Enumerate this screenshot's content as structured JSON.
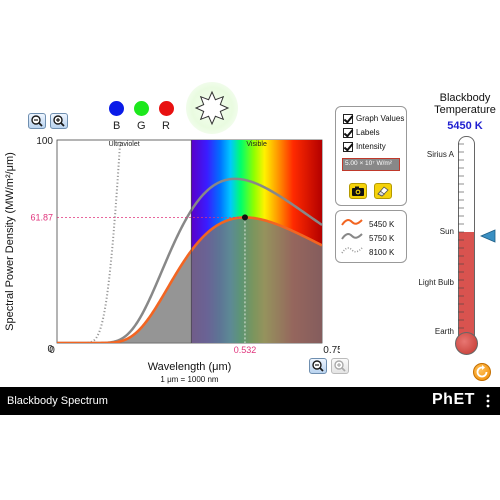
{
  "colors": {
    "curve_primary": "#f26522",
    "curve_secondary": "#888888",
    "curve_tertiary": "#999999",
    "marker_text": "#e0347c",
    "temperature_text": "#1f1fd0",
    "thermometer_fill": "#d9534f",
    "pointer": "#3a8fc2",
    "navbar": "#000000"
  },
  "photometer": {
    "blue_label": "B",
    "green_label": "G",
    "red_label": "R",
    "star_icon": "star-burst-icon"
  },
  "chart_data": {
    "type": "line",
    "title": "",
    "xlabel": "Wavelength (μm)",
    "ylabel": "Spectral Power Density (MW/m²/μm)",
    "xlim": [
      0,
      0.75
    ],
    "ylim": [
      0,
      100
    ],
    "x_tick_labels": [
      "0",
      "0.75"
    ],
    "y_tick_labels": [
      "0",
      "100"
    ],
    "unit_note": "1 μm  =  1000 nm",
    "regions": [
      {
        "name": "Ultraviolet",
        "x_range": [
          0,
          0.38
        ]
      },
      {
        "name": "Visible",
        "x_range": [
          0.38,
          0.75
        ]
      }
    ],
    "marker": {
      "x": 0.532,
      "y": 61.87,
      "x_label": "0.532",
      "y_label": "61.87"
    },
    "series": [
      {
        "name": "5450 K",
        "temperature_k": 5450,
        "style": "solid",
        "color": "#f26522"
      },
      {
        "name": "5750 K",
        "temperature_k": 5750,
        "style": "solid",
        "color": "#888888"
      },
      {
        "name": "8100 K",
        "temperature_k": 8100,
        "style": "dotted",
        "color": "#999999"
      }
    ]
  },
  "controls": {
    "graph_values_label": "Graph Values",
    "labels_label": "Labels",
    "intensity_label": "Intensity",
    "intensity_value": "5.00 × 10⁷ W/m²",
    "camera_icon": "camera-icon",
    "eraser_icon": "eraser-icon"
  },
  "legend": {
    "items": [
      "5450 K",
      "5750 K",
      "8100 K"
    ]
  },
  "thermometer": {
    "title_line1": "Blackbody",
    "title_line2": "Temperature",
    "value": "5450 K",
    "level_fraction": 0.535,
    "labels": [
      "Sirius A",
      "Sun",
      "Light Bulb",
      "Earth"
    ]
  },
  "footer": {
    "title": "Blackbody Spectrum",
    "brand": "PhET",
    "menu_icon": "kebab-menu-icon"
  },
  "zoom": {
    "vertical_zoom_out": "zoom-out-icon",
    "vertical_zoom_in": "zoom-in-icon",
    "horizontal_zoom_out": "zoom-out-icon",
    "horizontal_zoom_in": "zoom-in-icon"
  }
}
